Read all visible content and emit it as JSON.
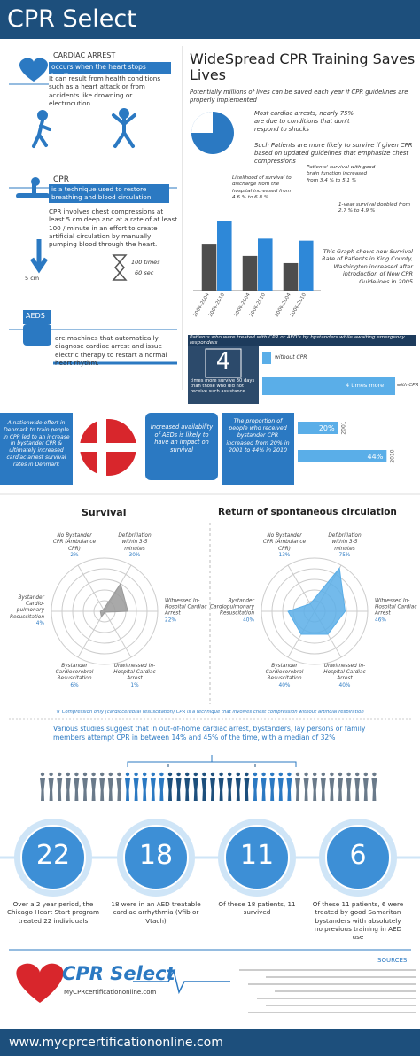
{
  "header": {
    "title": "CPR Select"
  },
  "cardiac_arrest": {
    "title": "CARDIAC ARREST",
    "highlight": "occurs when the heart stops beating",
    "body": "It can result from health conditions such as a heart attack or from accidents like drowning or electrocution."
  },
  "cpr": {
    "title": "CPR",
    "highlight": "is a technique used to restore breathing and blood circulation",
    "body": "CPR involves chest compressions at least 5 cm deep and at a rate of at least 100 / minute in an effort to create artificial circulation by manually pumping blood through the heart.",
    "depth": "5 cm",
    "rate_top": "100 times",
    "rate_bottom": "60 sec"
  },
  "aeds": {
    "title": "AEDS",
    "body": "are machines that automatically diagnose cardiac arrest and issue electric therapy to restart a normal heart rhythm."
  },
  "training": {
    "title": "WideSpread CPR Training Saves Lives",
    "subtitle": "Potentially millions of lives can be saved each year if CPR guidelines are properly implemented",
    "fact1": "Most cardiac arrests, nearly 75% are due to conditions that don't respond to shocks",
    "fact2": "Such Patients are more likely to survive if given CPR based on updated guidelines that emphasize chest compressions",
    "note1": "Likelihood of survival to discharge from the hospital increased from 4.6 % to 6.8 %",
    "note2": "Patients' survival with good brain function increased from 3.4 % to 5.1 %",
    "note3": "1-year survival doubled from 2.7 % to 4.9 %",
    "caption": "This Graph shows how Survival Rate of Patients in King County, Washington increased after introduction of New CPR Guidelines in 2005",
    "chart": {
      "type": "bar",
      "categories": [
        "2000-2004",
        "2006-2010",
        "2000-2004",
        "2006-2010",
        "2000-2004",
        "2006-2010"
      ],
      "values": [
        4.6,
        6.8,
        3.4,
        5.1,
        2.7,
        4.9
      ],
      "colors": [
        "#4d4d4d",
        "#2e88d8",
        "#4d4d4d",
        "#2e88d8",
        "#4d4d4d",
        "#2e88d8"
      ],
      "ylim": [
        0,
        8
      ]
    }
  },
  "bystander_box": {
    "heading": "Patients who were treated with CPR or AED's by bystanders while awaiting emergency responders",
    "big": "4",
    "detail": "times more survive 30 days than those who did not receive such assistance",
    "without": "without CPR",
    "with": "with CPR",
    "bar_text": "4 times more"
  },
  "denmark": {
    "effort": "A nationwide effort in Denmark to train people in CPR led to an increase in bystander CPR & ultimately increased cardiac arrest survival rates in Denmark",
    "aed": "Increased availability of AEDs is likely to have an impact on survival",
    "proportion": "The proportion of people who received bystander CPR increased from 20% in 2001 to 44% in 2010",
    "chart": {
      "type": "bar",
      "categories": [
        "2001",
        "2010"
      ],
      "values": [
        20,
        44
      ],
      "value_labels": [
        "20%",
        "44%"
      ],
      "xlim": [
        0,
        50
      ]
    }
  },
  "radars": [
    {
      "type": "radar",
      "title": "Survival",
      "categories": [
        "No Bystander CPR (Ambulance CPR)",
        "Defibrillation within 3-5 minutes",
        "Witnessed In-Hospital Cardiac Arrest",
        "Unwitnessed In-Hospital Cardiac Arrest",
        "Bystander Cardiocerebral Resuscitation",
        "Bystander Cardio-pulmonary Resuscitation"
      ],
      "values": [
        2,
        30,
        22,
        1,
        6,
        4
      ],
      "value_labels": [
        "2%",
        "30%",
        "22%",
        "1%",
        "6%",
        "4%"
      ],
      "rlim": [
        0,
        50
      ],
      "color": "#9a9a9a"
    },
    {
      "type": "radar",
      "title": "Return of spontaneous circulation",
      "categories": [
        "No Bystander CPR (Ambulance CPR)",
        "Defibrillation within 3-5 minutes",
        "Witnessed In-Hospital Cardiac Arrest",
        "Unwitnessed In-Hospital Cardiac Arrest",
        "Bystander Cardiocerebral Resuscitation",
        "Bystander Cardiopulmonary Resuscitation"
      ],
      "values": [
        13,
        75,
        46,
        40,
        40,
        40
      ],
      "value_labels": [
        "13%",
        "75%",
        "46%",
        "40%",
        "40%",
        "40%"
      ],
      "rlim": [
        0,
        80
      ],
      "color": "#5aaee8"
    }
  ],
  "radar_note": "★ Compression only (cardiocerebral resuscitation) CPR is a technique that involves chest compression without artificial respiration",
  "studies": "Various studies suggest that in out-of-home cardiac arrest, bystanders, lay persons or family members attempt CPR in between 14% and 45% of the time, with a median of 32%",
  "circles": [
    {
      "number": "22",
      "caption": "Over a 2 year period, the Chicago Heart Start program treated 22 individuals"
    },
    {
      "number": "18",
      "caption": "18 were in an AED treatable cardiac arrhythmia (Vfib or Vtach)"
    },
    {
      "number": "11",
      "caption": "Of these 18 patients, 11 survived"
    },
    {
      "number": "6",
      "caption": "Of these 11 patients, 6 were treated by good Samaritan bystanders with absolutely no previous training in AED use"
    }
  ],
  "footer": {
    "logo": "CPR Select",
    "site": "MyCPRcertificationonline.com",
    "sources": "SOURCES",
    "url": "www.mycprcertificationonline.com"
  }
}
